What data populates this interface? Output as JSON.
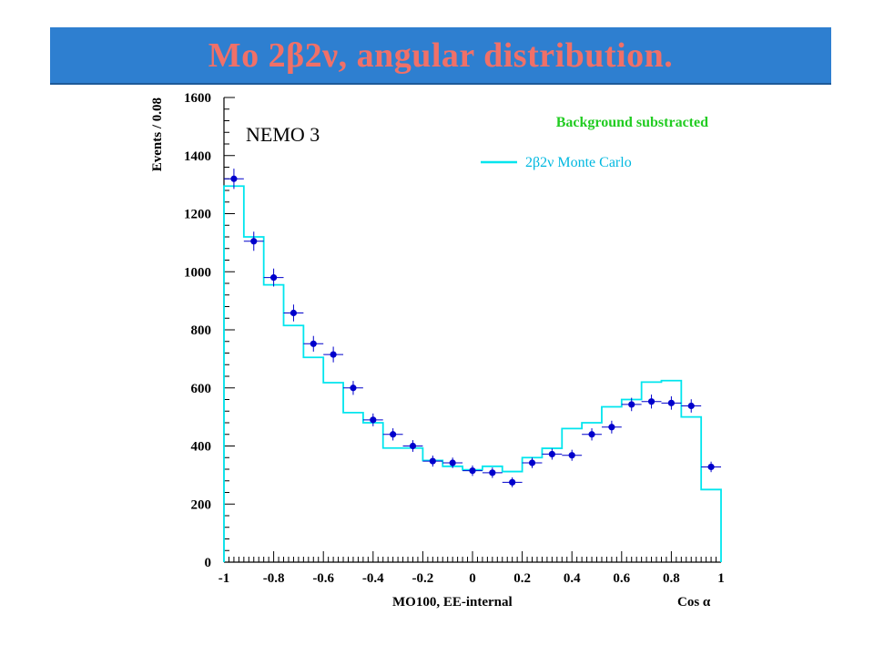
{
  "slide": {
    "title": "Mo 2β2ν, angular distribution."
  },
  "chart_data": {
    "type": "histogram-with-points",
    "experiment_label": "NEMO 3",
    "legend_title": "Background substracted",
    "legend_entries": [
      {
        "name": "2β2ν  Monte Carlo",
        "style": "line",
        "color": "#00e5ee"
      }
    ],
    "ylabel": "Events / 0.08",
    "xlabel_left": "MO100, EE-internal",
    "xlabel_right": "Cos α",
    "xlim": [
      -1,
      1
    ],
    "ylim": [
      0,
      1600
    ],
    "x_ticks": [
      -1,
      -0.8,
      -0.6,
      -0.4,
      -0.2,
      0,
      0.2,
      0.4,
      0.6,
      0.8,
      1
    ],
    "x_tick_labels": [
      "-1",
      "-0.8",
      "-0.6",
      "-0.4",
      "-0.2",
      "0",
      "0.2",
      "0.4",
      "0.6",
      "0.8",
      "1"
    ],
    "y_ticks": [
      0,
      200,
      400,
      600,
      800,
      1000,
      1200,
      1400,
      1600
    ],
    "y_tick_labels": [
      "0",
      "200",
      "400",
      "600",
      "800",
      "1000",
      "1200",
      "1400",
      "1600"
    ],
    "bin_width": 0.08,
    "bin_edges": [
      -1,
      -0.92,
      -0.84,
      -0.76,
      -0.68,
      -0.6,
      -0.52,
      -0.44,
      -0.36,
      -0.28,
      -0.2,
      -0.12,
      -0.04,
      0.04,
      0.12,
      0.2,
      0.28,
      0.36,
      0.44,
      0.52,
      0.6,
      0.68,
      0.76,
      0.84,
      0.92,
      1
    ],
    "monte_carlo": [
      1295,
      1120,
      955,
      815,
      705,
      618,
      515,
      480,
      393,
      393,
      350,
      330,
      318,
      330,
      312,
      360,
      392,
      460,
      480,
      535,
      560,
      620,
      625,
      500,
      250
    ],
    "data_points": [
      1320,
      1105,
      980,
      858,
      752,
      715,
      600,
      490,
      440,
      400,
      348,
      342,
      315,
      308,
      275,
      342,
      372,
      368,
      440,
      465,
      543,
      553,
      548,
      538,
      328
    ],
    "data_errors": [
      35,
      33,
      31,
      29,
      27,
      27,
      24,
      22,
      21,
      20,
      19,
      18,
      18,
      18,
      17,
      18,
      19,
      19,
      21,
      22,
      23,
      24,
      23,
      23,
      18
    ],
    "colors": {
      "histogram": "#00e5ee",
      "points": "#0000cc",
      "legend_title": "#22cc22",
      "legend_text": "#00b8e0",
      "axis": "#000000"
    }
  }
}
